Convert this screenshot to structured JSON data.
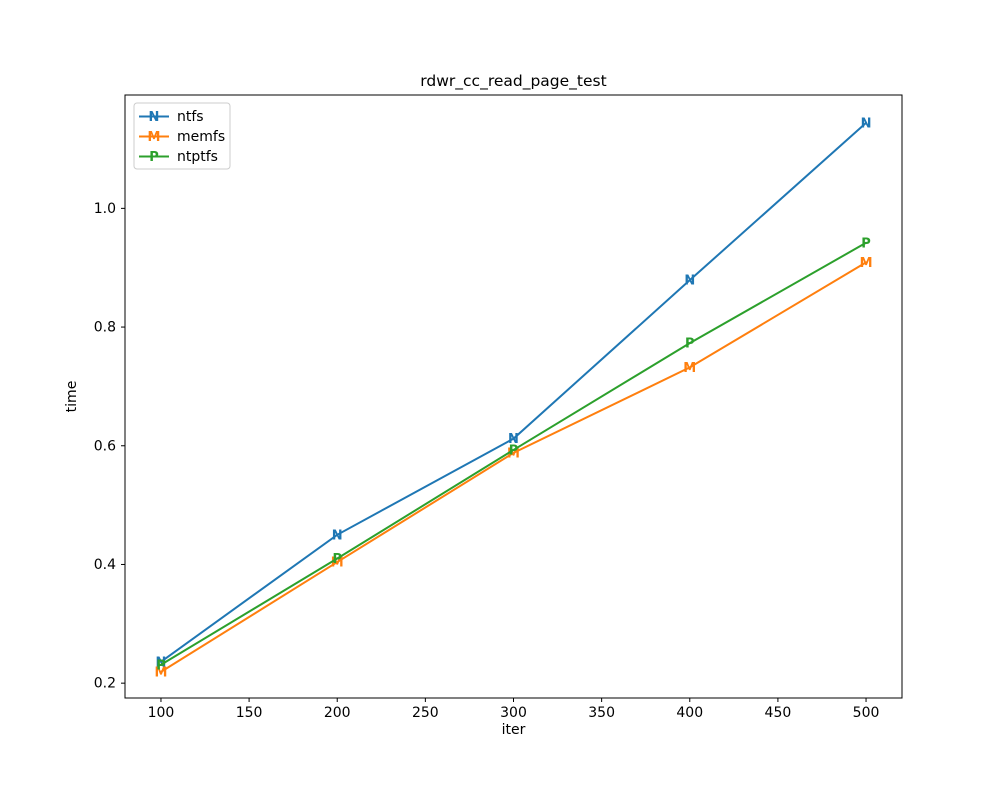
{
  "figure": {
    "background": "#ffffff",
    "frame_color": "#000000",
    "legend_edge_color": "#cccccc",
    "legend_fill": "#ffffff"
  },
  "chart_data": {
    "type": "line",
    "title": "rdwr_cc_read_page_test",
    "xlabel": "iter",
    "ylabel": "time",
    "x": [
      100,
      200,
      300,
      400,
      500
    ],
    "series": [
      {
        "name": "ntfs",
        "color": "#1f77b4",
        "marker": "N",
        "values": [
          0.236,
          0.45,
          0.612,
          0.879,
          1.144
        ]
      },
      {
        "name": "memfs",
        "color": "#ff7f0e",
        "marker": "M",
        "values": [
          0.219,
          0.404,
          0.588,
          0.732,
          0.909
        ]
      },
      {
        "name": "ntptfs",
        "color": "#2ca02c",
        "marker": "P",
        "values": [
          0.231,
          0.41,
          0.593,
          0.773,
          0.942
        ]
      }
    ],
    "xticks": [
      100,
      150,
      200,
      250,
      300,
      350,
      400,
      450,
      500
    ],
    "yticks": [
      0.2,
      0.4,
      0.6,
      0.8,
      1.0
    ],
    "ytick_labels": [
      "0.2",
      "0.4",
      "0.6",
      "0.8",
      "1.0"
    ],
    "xlim": [
      79.6,
      520.4
    ],
    "ylim": [
      0.175,
      1.191
    ],
    "legend_position": "upper left",
    "grid": false
  }
}
